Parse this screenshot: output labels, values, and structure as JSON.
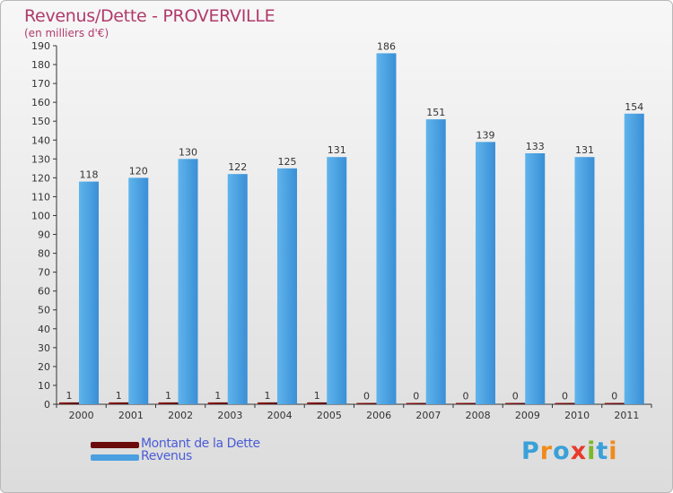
{
  "header": {
    "title": "Revenus/Dette - PROVERVILLE",
    "subtitle": "(en milliers d'€)"
  },
  "colors": {
    "title": "#b03a6a",
    "dette": "#6b0b0b",
    "revenus": "#4a9fe0",
    "legend_text": "#4a5cd6"
  },
  "legend": {
    "items": [
      {
        "label": "Montant de la Dette",
        "color": "#6b0b0b"
      },
      {
        "label": "Revenus",
        "color": "#4a9fe0"
      }
    ]
  },
  "logo": {
    "text": "Proxiti",
    "letter_colors": [
      "#3aa0d8",
      "#f08a1c",
      "#3aa0d8",
      "#e83a2a",
      "#7ab82a",
      "#3aa0d8",
      "#f08a1c"
    ]
  },
  "chart_data": {
    "type": "bar",
    "title": "Revenus/Dette - PROVERVILLE",
    "subtitle": "(en milliers d'€)",
    "xlabel": "",
    "ylabel": "",
    "categories": [
      "2000",
      "2001",
      "2002",
      "2003",
      "2004",
      "2005",
      "2006",
      "2007",
      "2008",
      "2009",
      "2010",
      "2011"
    ],
    "series": [
      {
        "name": "Montant de la Dette",
        "values": [
          1,
          1,
          1,
          1,
          1,
          1,
          0,
          0,
          0,
          0,
          0,
          0
        ]
      },
      {
        "name": "Revenus",
        "values": [
          118,
          120,
          130,
          122,
          125,
          131,
          186,
          151,
          139,
          133,
          131,
          154
        ]
      }
    ],
    "ylim": [
      0,
      190
    ],
    "yticks": [
      0,
      10,
      20,
      30,
      40,
      50,
      60,
      70,
      80,
      90,
      100,
      110,
      120,
      130,
      140,
      150,
      160,
      170,
      180,
      190
    ],
    "grid": false,
    "legend_position": "bottom-left"
  }
}
